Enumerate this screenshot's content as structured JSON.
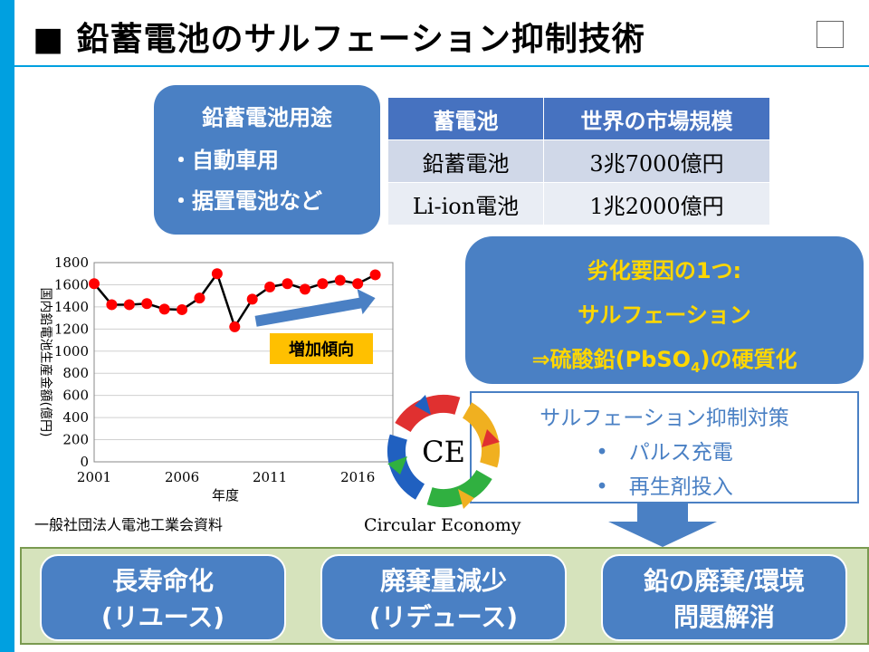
{
  "title": "■ 鉛蓄電池のサルフェーション抑制技術",
  "usage": {
    "heading": "鉛蓄電池用途",
    "items": [
      "・自動車用",
      "・据置電池など"
    ]
  },
  "market_table": {
    "headers": [
      "蓄電池",
      "世界の市場規模"
    ],
    "rows": [
      [
        "鉛蓄電池",
        "3兆7000億円"
      ],
      [
        "Li-ion電池",
        "1兆2000億円"
      ]
    ]
  },
  "chart_data": {
    "type": "line",
    "x": [
      2001,
      2002,
      2003,
      2004,
      2005,
      2006,
      2007,
      2008,
      2009,
      2010,
      2011,
      2012,
      2013,
      2014,
      2015,
      2016,
      2017
    ],
    "series": [
      {
        "values": [
          1610,
          1420,
          1420,
          1430,
          1380,
          1375,
          1480,
          1700,
          1220,
          1470,
          1580,
          1610,
          1560,
          1610,
          1640,
          1610,
          1690
        ]
      }
    ],
    "xlabel": "年度",
    "ylabel": "国内鉛電池生産金額(億円)",
    "x_ticks": [
      2001,
      2006,
      2011,
      2016
    ],
    "y_ticks": [
      0,
      200,
      400,
      600,
      800,
      1000,
      1200,
      1400,
      1600,
      1800
    ],
    "ylim": [
      0,
      1800
    ],
    "xlim": [
      2001,
      2018
    ],
    "grid": true,
    "annotation": "増加傾向",
    "colors": {
      "line": "#000000",
      "marker": "#ff0000",
      "arrow": "#4a80c4",
      "label_bg": "#ffc000"
    }
  },
  "chart_source": "一般社団法人電池工業会資料",
  "degradation": {
    "line1": "劣化要因の1つ:",
    "line2": "サルフェーション",
    "line3_pre": "⇒硫酸鉛(PbSO",
    "line3_sub": "4",
    "line3_post": ")の硬質化"
  },
  "countermeasure": {
    "heading": "サルフェーション抑制対策",
    "items": [
      "•　パルス充電",
      "•　再生剤投入"
    ]
  },
  "ce": {
    "label": "CE",
    "caption": "Circular Economy",
    "icon": "recycle-cycle-icon",
    "colors": [
      "#e03030",
      "#f0b020",
      "#30b040",
      "#2060c0"
    ]
  },
  "outcomes": [
    {
      "line1": "長寿命化",
      "line2": "(リユース)"
    },
    {
      "line1": "廃棄量減少",
      "line2": "(リデュース)"
    },
    {
      "line1": "鉛の廃棄/環境",
      "line2": "問題解消"
    }
  ],
  "colors": {
    "accent": "#00a0e0",
    "box_blue": "#4a80c4",
    "panel_green": "#d6e3bc",
    "highlight_yellow": "#ffd700"
  }
}
